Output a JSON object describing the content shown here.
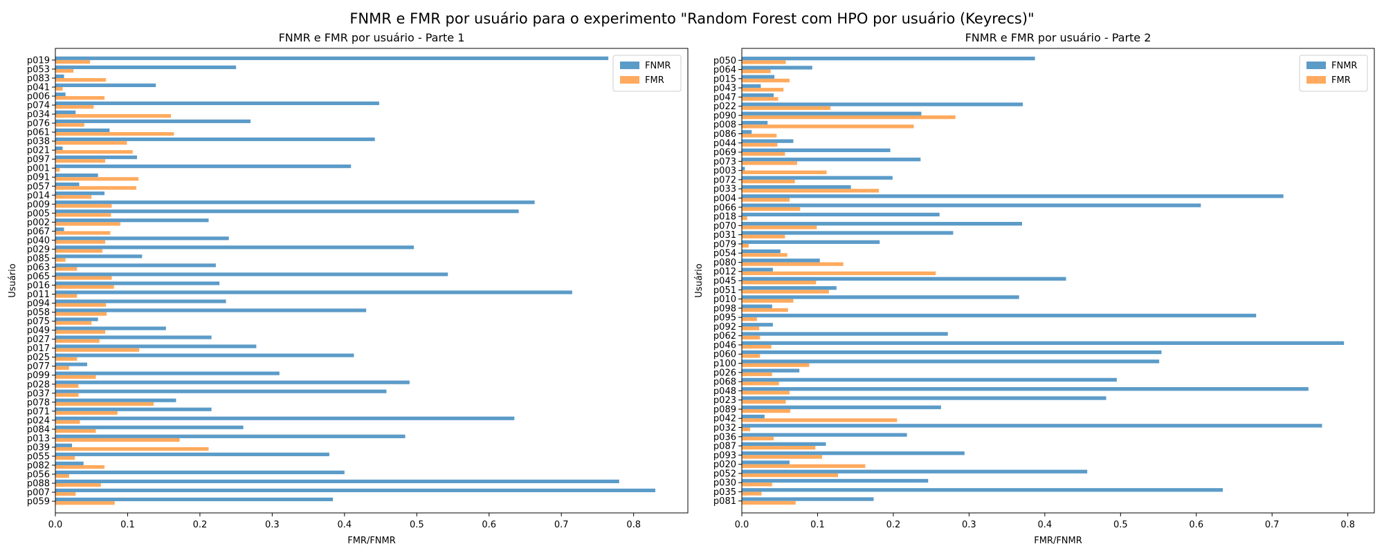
{
  "suptitle": "FNMR e FMR por usuário para o experimento \"Random Forest com HPO por usuário (Keyrecs)\"",
  "colors": {
    "FNMR": "#5b9bc8",
    "FMR": "#ffaa5e"
  },
  "chart_data": [
    {
      "type": "bar",
      "orientation": "horizontal",
      "title": "FNMR e FMR por usuário - Parte 1",
      "xlabel": "FMR/FNMR",
      "ylabel": "Usuário",
      "xlim": [
        0,
        0.875
      ],
      "xticks": [
        0,
        0.1,
        0.2,
        0.3,
        0.4,
        0.5,
        0.6,
        0.7,
        0.8
      ],
      "legend": "top-right",
      "categories": [
        "p019",
        "p053",
        "p083",
        "p041",
        "p006",
        "p074",
        "p034",
        "p076",
        "p061",
        "p038",
        "p021",
        "p097",
        "p001",
        "p091",
        "p057",
        "p014",
        "p009",
        "p005",
        "p002",
        "p067",
        "p040",
        "p029",
        "p085",
        "p063",
        "p065",
        "p016",
        "p011",
        "p094",
        "p058",
        "p075",
        "p049",
        "p027",
        "p017",
        "p025",
        "p077",
        "p099",
        "p028",
        "p037",
        "p078",
        "p071",
        "p024",
        "p084",
        "p013",
        "p039",
        "p055",
        "p082",
        "p056",
        "p088",
        "p007",
        "p059"
      ],
      "series": [
        {
          "name": "FNMR",
          "values": [
            0.765,
            0.25,
            0.012,
            0.139,
            0.014,
            0.448,
            0.028,
            0.27,
            0.075,
            0.442,
            0.01,
            0.113,
            0.409,
            0.059,
            0.033,
            0.068,
            0.663,
            0.641,
            0.212,
            0.012,
            0.24,
            0.496,
            0.12,
            0.222,
            0.543,
            0.227,
            0.715,
            0.236,
            0.43,
            0.059,
            0.153,
            0.216,
            0.278,
            0.413,
            0.044,
            0.31,
            0.49,
            0.458,
            0.167,
            0.216,
            0.635,
            0.26,
            0.484,
            0.023,
            0.379,
            0.039,
            0.4,
            0.78,
            0.83,
            0.384
          ]
        },
        {
          "name": "FMR",
          "values": [
            0.048,
            0.025,
            0.07,
            0.01,
            0.068,
            0.053,
            0.16,
            0.04,
            0.164,
            0.099,
            0.107,
            0.069,
            0.006,
            0.115,
            0.112,
            0.05,
            0.078,
            0.077,
            0.09,
            0.076,
            0.069,
            0.065,
            0.014,
            0.03,
            0.078,
            0.081,
            0.03,
            0.07,
            0.071,
            0.05,
            0.069,
            0.061,
            0.116,
            0.03,
            0.019,
            0.056,
            0.032,
            0.032,
            0.136,
            0.086,
            0.034,
            0.056,
            0.172,
            0.212,
            0.027,
            0.068,
            0.019,
            0.063,
            0.028,
            0.082
          ]
        }
      ]
    },
    {
      "type": "bar",
      "orientation": "horizontal",
      "title": "FNMR e FMR por usuário - Parte 2",
      "xlabel": "FMR/FNMR",
      "ylabel": "Usuário",
      "xlim": [
        0,
        0.835
      ],
      "xticks": [
        0,
        0.1,
        0.2,
        0.3,
        0.4,
        0.5,
        0.6,
        0.7,
        0.8
      ],
      "legend": "top-right",
      "categories": [
        "p050",
        "p064",
        "p015",
        "p043",
        "p047",
        "p022",
        "p090",
        "p008",
        "p086",
        "p044",
        "p069",
        "p073",
        "p003",
        "p072",
        "p033",
        "p004",
        "p066",
        "p018",
        "p070",
        "p031",
        "p079",
        "p054",
        "p080",
        "p012",
        "p045",
        "p051",
        "p010",
        "p098",
        "p095",
        "p092",
        "p062",
        "p046",
        "p060",
        "p100",
        "p026",
        "p068",
        "p048",
        "p023",
        "p089",
        "p042",
        "p032",
        "p036",
        "p087",
        "p093",
        "p020",
        "p052",
        "p030",
        "p035",
        "p081"
      ],
      "series": [
        {
          "name": "FNMR",
          "values": [
            0.387,
            0.093,
            0.043,
            0.025,
            0.042,
            0.371,
            0.237,
            0.034,
            0.013,
            0.068,
            0.196,
            0.236,
            0.004,
            0.199,
            0.144,
            0.715,
            0.606,
            0.261,
            0.37,
            0.279,
            0.182,
            0.051,
            0.103,
            0.041,
            0.428,
            0.125,
            0.366,
            0.04,
            0.679,
            0.041,
            0.272,
            0.795,
            0.554,
            0.551,
            0.076,
            0.495,
            0.748,
            0.481,
            0.263,
            0.03,
            0.766,
            0.218,
            0.111,
            0.294,
            0.063,
            0.456,
            0.246,
            0.635,
            0.174
          ]
        },
        {
          "name": "FMR",
          "values": [
            0.058,
            0.038,
            0.063,
            0.055,
            0.048,
            0.117,
            0.282,
            0.227,
            0.046,
            0.047,
            0.057,
            0.073,
            0.112,
            0.07,
            0.181,
            0.063,
            0.077,
            0.007,
            0.099,
            0.057,
            0.009,
            0.06,
            0.134,
            0.256,
            0.098,
            0.115,
            0.068,
            0.061,
            0.02,
            0.023,
            0.024,
            0.039,
            0.024,
            0.089,
            0.04,
            0.049,
            0.063,
            0.058,
            0.064,
            0.205,
            0.011,
            0.042,
            0.097,
            0.106,
            0.163,
            0.127,
            0.04,
            0.026,
            0.071
          ]
        }
      ]
    }
  ]
}
